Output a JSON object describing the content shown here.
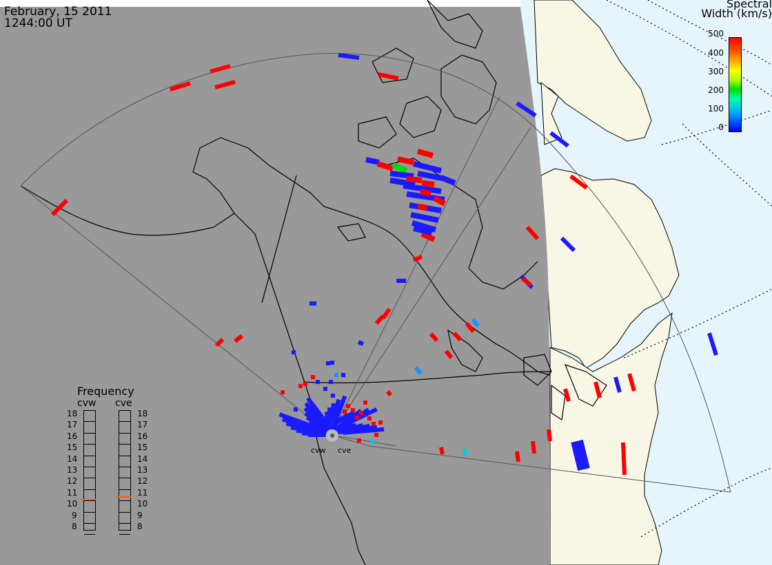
{
  "header": {
    "date": "February, 15 2011",
    "time": "1244:00 UT"
  },
  "colorbar": {
    "title_line1": "Spectral",
    "title_line2": "Width (km/s)",
    "ticks": [
      "500",
      "400",
      "300",
      "200",
      "100",
      "0"
    ]
  },
  "frequency_panel": {
    "title": "Frequency",
    "radars": [
      "cvw",
      "cve"
    ],
    "levels": [
      "18",
      "17",
      "16",
      "15",
      "14",
      "13",
      "12",
      "11",
      "10",
      "9",
      "8"
    ],
    "cvw_value": 10.6,
    "cve_value": 10.8
  },
  "sites": {
    "west": "cvw",
    "east": "cve"
  },
  "colors": {
    "night": "#999999",
    "day_land": "#f8f6e4",
    "day_ocean": "#e6f4fc",
    "marker_red": "#ff0000",
    "marker_blue": "#1a1aff",
    "freq_line": "#ff5a1e"
  }
}
